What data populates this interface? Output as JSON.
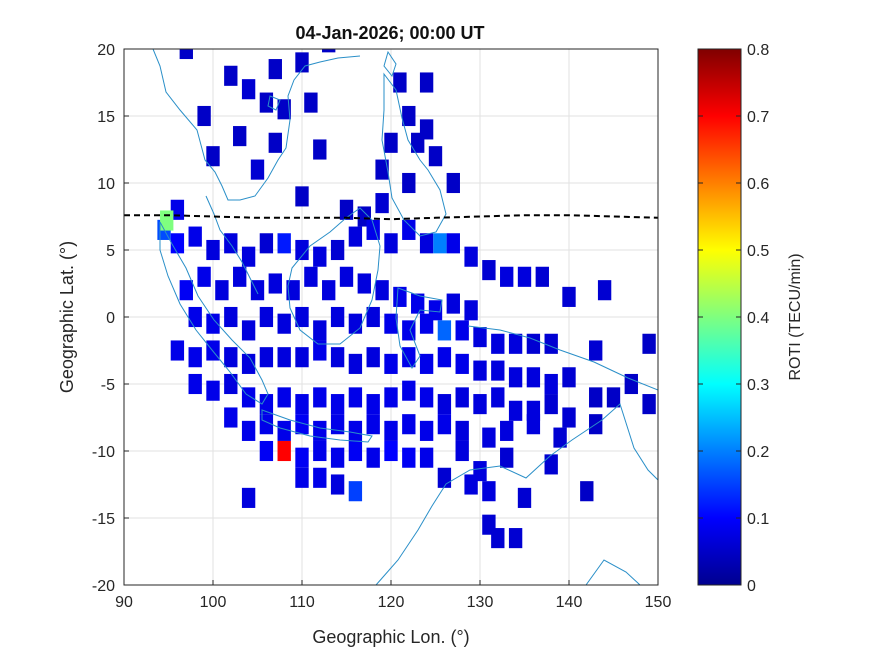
{
  "chart_data": {
    "type": "heatmap",
    "title": "04-Jan-2026; 00:00 UT",
    "xlabel": "Geographic Lon. (°)",
    "ylabel": "Geographic Lat. (°)",
    "xlim": [
      90,
      150
    ],
    "ylim": [
      -20,
      20
    ],
    "xticks": [
      "90",
      "100",
      "110",
      "120",
      "130",
      "140",
      "150"
    ],
    "yticks": [
      "20",
      "15",
      "10",
      "5",
      "0",
      "-5",
      "-10",
      "-15",
      "-20"
    ],
    "grid": true,
    "colorbar": {
      "label": "ROTI (TECU/min)",
      "range": [
        0,
        0.8
      ],
      "ticks": [
        "0",
        "0.1",
        "0.2",
        "0.3",
        "0.4",
        "0.5",
        "0.6",
        "0.7",
        "0.8"
      ],
      "colormap": "jet"
    },
    "cell_size_deg": [
      1.5,
      1.5
    ],
    "cells": [
      [
        97,
        20,
        0.05
      ],
      [
        102,
        18,
        0.05
      ],
      [
        107,
        18.5,
        0.05
      ],
      [
        110,
        19,
        0.05
      ],
      [
        113,
        20.5,
        0.05
      ],
      [
        104,
        17,
        0.06
      ],
      [
        106,
        16,
        0.05
      ],
      [
        108,
        15.5,
        0.05
      ],
      [
        111,
        16,
        0.05
      ],
      [
        99,
        15,
        0.05
      ],
      [
        103,
        13.5,
        0.05
      ],
      [
        107,
        13,
        0.05
      ],
      [
        112,
        12.5,
        0.05
      ],
      [
        100,
        12,
        0.05
      ],
      [
        105,
        11,
        0.06
      ],
      [
        121,
        17.5,
        0.05
      ],
      [
        124,
        17.5,
        0.05
      ],
      [
        122,
        15,
        0.05
      ],
      [
        124,
        14,
        0.05
      ],
      [
        120,
        13,
        0.05
      ],
      [
        123,
        13,
        0.05
      ],
      [
        125,
        12,
        0.05
      ],
      [
        119,
        11,
        0.05
      ],
      [
        122,
        10,
        0.05
      ],
      [
        127,
        10,
        0.05
      ],
      [
        110,
        9,
        0.05
      ],
      [
        115,
        8,
        0.05
      ],
      [
        117,
        7.5,
        0.05
      ],
      [
        119,
        8.5,
        0.06
      ],
      [
        96,
        8,
        0.08
      ],
      [
        94.5,
        6.5,
        0.16
      ],
      [
        94.8,
        7.2,
        0.4
      ],
      [
        96,
        5.5,
        0.1
      ],
      [
        98,
        6,
        0.08
      ],
      [
        100,
        5,
        0.07
      ],
      [
        102,
        5.5,
        0.07
      ],
      [
        104,
        4.5,
        0.07
      ],
      [
        106,
        5.5,
        0.06
      ],
      [
        108,
        5.5,
        0.12
      ],
      [
        110,
        5,
        0.07
      ],
      [
        112,
        4.5,
        0.07
      ],
      [
        114,
        5,
        0.06
      ],
      [
        116,
        6,
        0.07
      ],
      [
        118,
        6.5,
        0.08
      ],
      [
        120,
        5.5,
        0.07
      ],
      [
        122,
        6.5,
        0.08
      ],
      [
        124,
        5.5,
        0.07
      ],
      [
        125.5,
        5.5,
        0.2
      ],
      [
        127,
        5.5,
        0.08
      ],
      [
        129,
        4.5,
        0.07
      ],
      [
        131,
        3.5,
        0.06
      ],
      [
        133,
        3,
        0.07
      ],
      [
        135,
        3,
        0.07
      ],
      [
        137,
        3,
        0.06
      ],
      [
        97,
        2,
        0.09
      ],
      [
        99,
        3,
        0.08
      ],
      [
        101,
        2,
        0.07
      ],
      [
        103,
        3,
        0.07
      ],
      [
        105,
        2,
        0.07
      ],
      [
        107,
        2.5,
        0.07
      ],
      [
        109,
        2,
        0.07
      ],
      [
        111,
        3,
        0.07
      ],
      [
        113,
        2,
        0.07
      ],
      [
        115,
        3,
        0.07
      ],
      [
        117,
        2.5,
        0.07
      ],
      [
        119,
        2,
        0.07
      ],
      [
        121,
        1.5,
        0.08
      ],
      [
        123,
        1,
        0.08
      ],
      [
        125,
        0.5,
        0.08
      ],
      [
        127,
        1,
        0.07
      ],
      [
        129,
        0.5,
        0.07
      ],
      [
        140,
        1.5,
        0.06
      ],
      [
        144,
        2,
        0.06
      ],
      [
        98,
        0,
        0.08
      ],
      [
        100,
        -0.5,
        0.08
      ],
      [
        102,
        0,
        0.07
      ],
      [
        104,
        -1,
        0.07
      ],
      [
        106,
        0,
        0.07
      ],
      [
        108,
        -0.5,
        0.07
      ],
      [
        110,
        0,
        0.07
      ],
      [
        112,
        -1,
        0.07
      ],
      [
        114,
        0,
        0.07
      ],
      [
        116,
        -0.5,
        0.07
      ],
      [
        118,
        0,
        0.07
      ],
      [
        120,
        -0.5,
        0.08
      ],
      [
        122,
        -1,
        0.08
      ],
      [
        124,
        -0.5,
        0.08
      ],
      [
        126,
        -1,
        0.18
      ],
      [
        128,
        -1,
        0.08
      ],
      [
        130,
        -1.5,
        0.07
      ],
      [
        132,
        -2,
        0.07
      ],
      [
        134,
        -2,
        0.07
      ],
      [
        136,
        -2,
        0.06
      ],
      [
        138,
        -2,
        0.06
      ],
      [
        96,
        -2.5,
        0.08
      ],
      [
        98,
        -3,
        0.08
      ],
      [
        100,
        -2.5,
        0.08
      ],
      [
        102,
        -3,
        0.07
      ],
      [
        104,
        -3.5,
        0.07
      ],
      [
        106,
        -3,
        0.07
      ],
      [
        108,
        -3,
        0.07
      ],
      [
        110,
        -3,
        0.07
      ],
      [
        112,
        -2.5,
        0.08
      ],
      [
        114,
        -3,
        0.07
      ],
      [
        116,
        -3.5,
        0.07
      ],
      [
        118,
        -3,
        0.07
      ],
      [
        120,
        -3.5,
        0.08
      ],
      [
        122,
        -3,
        0.08
      ],
      [
        124,
        -3.5,
        0.08
      ],
      [
        126,
        -3,
        0.08
      ],
      [
        128,
        -3.5,
        0.08
      ],
      [
        130,
        -4,
        0.07
      ],
      [
        132,
        -4,
        0.07
      ],
      [
        134,
        -4.5,
        0.07
      ],
      [
        136,
        -4.5,
        0.07
      ],
      [
        138,
        -5,
        0.07
      ],
      [
        140,
        -4.5,
        0.06
      ],
      [
        143,
        -2.5,
        0.06
      ],
      [
        147,
        -5,
        0.05
      ],
      [
        149,
        -2,
        0.05
      ],
      [
        98,
        -5,
        0.08
      ],
      [
        100,
        -5.5,
        0.08
      ],
      [
        102,
        -5,
        0.07
      ],
      [
        104,
        -6,
        0.08
      ],
      [
        106,
        -6.5,
        0.08
      ],
      [
        108,
        -6,
        0.08
      ],
      [
        110,
        -6.5,
        0.08
      ],
      [
        112,
        -6,
        0.08
      ],
      [
        114,
        -6.5,
        0.08
      ],
      [
        116,
        -6,
        0.08
      ],
      [
        118,
        -6.5,
        0.08
      ],
      [
        120,
        -6,
        0.08
      ],
      [
        122,
        -5.5,
        0.08
      ],
      [
        124,
        -6,
        0.08
      ],
      [
        126,
        -6.5,
        0.07
      ],
      [
        128,
        -6,
        0.07
      ],
      [
        130,
        -6.5,
        0.07
      ],
      [
        132,
        -6,
        0.07
      ],
      [
        134,
        -7,
        0.07
      ],
      [
        136,
        -7,
        0.07
      ],
      [
        138,
        -6.5,
        0.06
      ],
      [
        140,
        -7.5,
        0.06
      ],
      [
        143,
        -6,
        0.05
      ],
      [
        145,
        -6,
        0.05
      ],
      [
        149,
        -6.5,
        0.05
      ],
      [
        102,
        -7.5,
        0.08
      ],
      [
        104,
        -8.5,
        0.08
      ],
      [
        106,
        -8,
        0.08
      ],
      [
        108,
        -8.5,
        0.08
      ],
      [
        110,
        -8,
        0.09
      ],
      [
        112,
        -8.5,
        0.08
      ],
      [
        114,
        -8,
        0.08
      ],
      [
        116,
        -8.5,
        0.08
      ],
      [
        118,
        -8,
        0.08
      ],
      [
        120,
        -8.5,
        0.08
      ],
      [
        122,
        -8,
        0.08
      ],
      [
        124,
        -8.5,
        0.08
      ],
      [
        126,
        -8,
        0.08
      ],
      [
        128,
        -8.5,
        0.07
      ],
      [
        131,
        -9,
        0.07
      ],
      [
        133,
        -8.5,
        0.07
      ],
      [
        136,
        -8,
        0.07
      ],
      [
        139,
        -9,
        0.06
      ],
      [
        143,
        -8,
        0.05
      ],
      [
        106,
        -10,
        0.09
      ],
      [
        108,
        -10,
        0.7
      ],
      [
        110,
        -10.5,
        0.09
      ],
      [
        112,
        -10,
        0.08
      ],
      [
        114,
        -10.5,
        0.08
      ],
      [
        116,
        -10,
        0.09
      ],
      [
        118,
        -10.5,
        0.08
      ],
      [
        120,
        -10,
        0.1
      ],
      [
        122,
        -10.5,
        0.09
      ],
      [
        124,
        -10.5,
        0.08
      ],
      [
        128,
        -10,
        0.07
      ],
      [
        130,
        -11.5,
        0.07
      ],
      [
        133,
        -10.5,
        0.06
      ],
      [
        138,
        -11,
        0.06
      ],
      [
        110,
        -12,
        0.08
      ],
      [
        112,
        -12,
        0.08
      ],
      [
        114,
        -12.5,
        0.07
      ],
      [
        126,
        -12,
        0.06
      ],
      [
        129,
        -12.5,
        0.07
      ],
      [
        131,
        -13,
        0.07
      ],
      [
        135,
        -13.5,
        0.06
      ],
      [
        104,
        -13.5,
        0.07
      ],
      [
        116,
        -13,
        0.15
      ],
      [
        131,
        -15.5,
        0.06
      ],
      [
        132,
        -16.5,
        0.06
      ],
      [
        134,
        -16.5,
        0.06
      ],
      [
        142,
        -13,
        0.05
      ]
    ],
    "terminator": [
      [
        90,
        7.6
      ],
      [
        95,
        7.6
      ],
      [
        100,
        7.5
      ],
      [
        105,
        7.4
      ],
      [
        110,
        7.4
      ],
      [
        115,
        7.4
      ],
      [
        120,
        7.3
      ],
      [
        125,
        7.4
      ],
      [
        130,
        7.5
      ],
      [
        135,
        7.6
      ],
      [
        140,
        7.6
      ],
      [
        145,
        7.5
      ],
      [
        150,
        7.4
      ]
    ]
  }
}
